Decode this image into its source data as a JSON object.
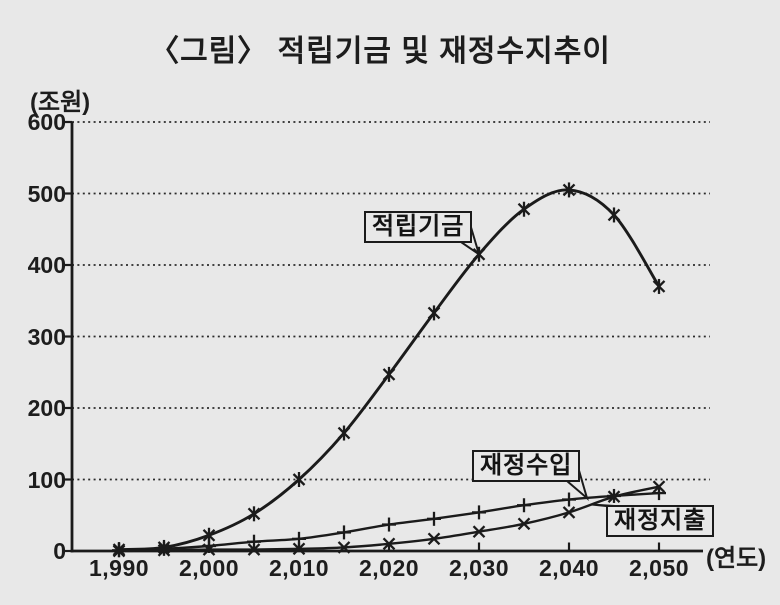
{
  "figure": {
    "title": "〈그림〉 적립기금 및 재정수지추이",
    "y_axis_unit": "(조원)",
    "x_axis_unit": "(연도)"
  },
  "colors": {
    "background": "#e8e8e8",
    "ink": "#1b1b1b"
  },
  "chart_data": {
    "type": "line",
    "title": "〈그림〉 적립기금 및 재정수지추이",
    "xlabel": "(연도)",
    "ylabel": "(조원)",
    "x": [
      1990,
      1995,
      2000,
      2005,
      2010,
      2015,
      2020,
      2025,
      2030,
      2035,
      2040,
      2045,
      2050
    ],
    "x_ticks": [
      1990,
      2000,
      2010,
      2020,
      2030,
      2040,
      2050
    ],
    "x_tick_labels": [
      "1,990",
      "2,000",
      "2,010",
      "2,020",
      "2,030",
      "2,040",
      "2,050"
    ],
    "y_ticks": [
      0,
      100,
      200,
      300,
      400,
      500,
      600
    ],
    "ylim": [
      0,
      600
    ],
    "grid": "horizontal-dotted",
    "legend_position": "inline-callouts",
    "series": [
      {
        "name": "적립기금",
        "marker": "asterisk",
        "values": [
          2,
          5,
          22,
          52,
          100,
          165,
          247,
          333,
          415,
          478,
          505,
          470,
          370
        ]
      },
      {
        "name": "재정수입",
        "marker": "plus",
        "values": [
          1,
          3,
          7,
          13,
          17,
          26,
          37,
          45,
          54,
          64,
          72,
          77,
          81
        ]
      },
      {
        "name": "재정지출",
        "marker": "x",
        "values": [
          0,
          1,
          2,
          2,
          3,
          5,
          10,
          17,
          27,
          38,
          54,
          76,
          90
        ]
      }
    ],
    "callouts": [
      {
        "label": "적립기금",
        "series": 0,
        "year": 2030
      },
      {
        "label": "재정수입",
        "series": 1,
        "year": 2042
      },
      {
        "label": "재정지출",
        "series": 2,
        "year": 2042.5
      }
    ]
  }
}
